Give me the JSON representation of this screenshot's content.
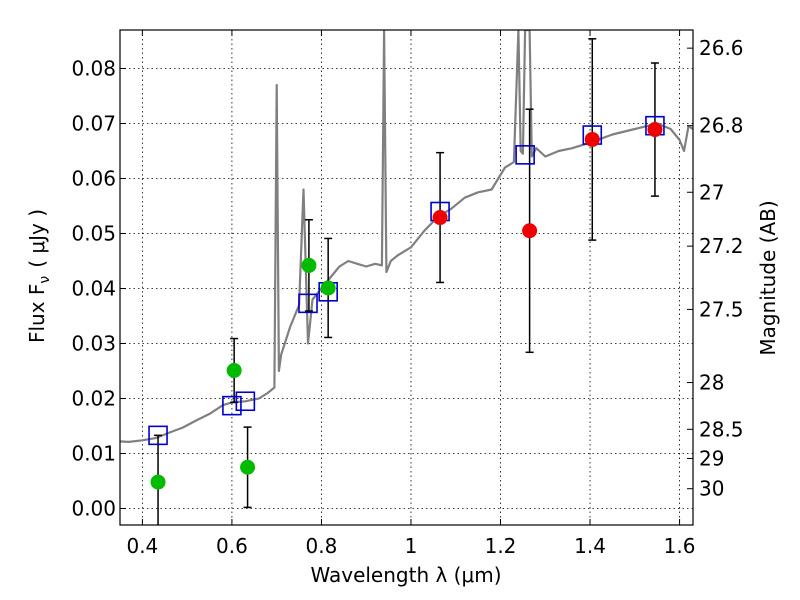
{
  "chart_data": {
    "type": "scatter",
    "xlabel": "Wavelength  λ (μm)",
    "ylabel_left": "Flux  F",
    "ylabel_left_sub": "ν",
    "ylabel_left_unit": "( μJy )",
    "ylabel_right": "Magnitude (AB)",
    "xlim": [
      0.35,
      1.63
    ],
    "ylim": [
      -0.003,
      0.087
    ],
    "grid": true,
    "x_ticks": [
      {
        "value": 0.4,
        "label": "0.4"
      },
      {
        "value": 0.6,
        "label": "0.6"
      },
      {
        "value": 0.8,
        "label": "0.8"
      },
      {
        "value": 1.0,
        "label": "1"
      },
      {
        "value": 1.2,
        "label": "1.2"
      },
      {
        "value": 1.4,
        "label": "1.4"
      },
      {
        "value": 1.6,
        "label": "1.6"
      }
    ],
    "y_ticks": [
      {
        "value": 0.0,
        "label": "0.00"
      },
      {
        "value": 0.01,
        "label": "0.01"
      },
      {
        "value": 0.02,
        "label": "0.02"
      },
      {
        "value": 0.03,
        "label": "0.03"
      },
      {
        "value": 0.04,
        "label": "0.04"
      },
      {
        "value": 0.05,
        "label": "0.05"
      },
      {
        "value": 0.06,
        "label": "0.06"
      },
      {
        "value": 0.07,
        "label": "0.07"
      },
      {
        "value": 0.08,
        "label": "0.08"
      }
    ],
    "right_ticks": [
      {
        "flux": 0.0837,
        "label": "26.6"
      },
      {
        "flux": 0.0696,
        "label": "26.8"
      },
      {
        "flux": 0.0575,
        "label": "27"
      },
      {
        "flux": 0.0477,
        "label": "27.2"
      },
      {
        "flux": 0.0362,
        "label": "27.5"
      },
      {
        "flux": 0.0229,
        "label": "28"
      },
      {
        "flux": 0.0144,
        "label": "28.5"
      },
      {
        "flux": 0.0091,
        "label": "29"
      },
      {
        "flux": 0.0036,
        "label": "30"
      }
    ],
    "model_spectrum": {
      "color": "#808080",
      "x": [
        0.35,
        0.37,
        0.4,
        0.43,
        0.46,
        0.49,
        0.52,
        0.55,
        0.58,
        0.6,
        0.63,
        0.66,
        0.68,
        0.695,
        0.7,
        0.705,
        0.71,
        0.73,
        0.75,
        0.76,
        0.77,
        0.78,
        0.8,
        0.82,
        0.84,
        0.86,
        0.88,
        0.9,
        0.92,
        0.935,
        0.94,
        0.945,
        0.95,
        0.955,
        0.97,
        1.0,
        1.03,
        1.06,
        1.09,
        1.12,
        1.15,
        1.18,
        1.21,
        1.23,
        1.24,
        1.245,
        1.25,
        1.255,
        1.265,
        1.27,
        1.28,
        1.3,
        1.33,
        1.36,
        1.4,
        1.45,
        1.5,
        1.55,
        1.58,
        1.6,
        1.61,
        1.62,
        1.63
      ],
      "y": [
        0.0122,
        0.0121,
        0.0124,
        0.0128,
        0.0138,
        0.0147,
        0.016,
        0.0172,
        0.0188,
        0.0193,
        0.0195,
        0.02,
        0.021,
        0.022,
        0.077,
        0.025,
        0.028,
        0.033,
        0.037,
        0.058,
        0.03,
        0.038,
        0.04,
        0.042,
        0.044,
        0.045,
        0.0445,
        0.044,
        0.0445,
        0.0442,
        0.087,
        0.043,
        0.044,
        0.045,
        0.046,
        0.0475,
        0.0505,
        0.053,
        0.0545,
        0.0565,
        0.0575,
        0.058,
        0.062,
        0.063,
        0.087,
        0.065,
        0.0645,
        0.087,
        0.087,
        0.064,
        0.0655,
        0.064,
        0.065,
        0.0655,
        0.0665,
        0.068,
        0.069,
        0.07,
        0.069,
        0.067,
        0.065,
        0.0695,
        0.069
      ]
    },
    "model_photometry": {
      "marker": "open-square",
      "color": "#0000cc",
      "points": [
        {
          "x": 0.435,
          "y": 0.0133
        },
        {
          "x": 0.6,
          "y": 0.0187
        },
        {
          "x": 0.63,
          "y": 0.0195
        },
        {
          "x": 0.77,
          "y": 0.0373
        },
        {
          "x": 0.815,
          "y": 0.0394
        },
        {
          "x": 1.065,
          "y": 0.054
        },
        {
          "x": 1.255,
          "y": 0.0643
        },
        {
          "x": 1.405,
          "y": 0.0679
        },
        {
          "x": 1.545,
          "y": 0.0696
        }
      ]
    },
    "observed_optical": {
      "marker": "filled-circle",
      "color": "#00bb00",
      "points": [
        {
          "x": 0.435,
          "y": 0.0048,
          "err": 0.0085
        },
        {
          "x": 0.605,
          "y": 0.0251,
          "err": 0.0058
        },
        {
          "x": 0.635,
          "y": 0.0075,
          "err": 0.0073
        },
        {
          "x": 0.772,
          "y": 0.0442,
          "err": 0.0083
        },
        {
          "x": 0.815,
          "y": 0.0401,
          "err": 0.009
        }
      ]
    },
    "observed_nir": {
      "marker": "filled-circle",
      "color": "#ee0000",
      "points": [
        {
          "x": 1.065,
          "y": 0.0529,
          "err": 0.0118
        },
        {
          "x": 1.265,
          "y": 0.0505,
          "err": 0.0221
        },
        {
          "x": 1.405,
          "y": 0.0671,
          "err": 0.0183
        },
        {
          "x": 1.545,
          "y": 0.0689,
          "err": 0.0121
        }
      ]
    }
  }
}
